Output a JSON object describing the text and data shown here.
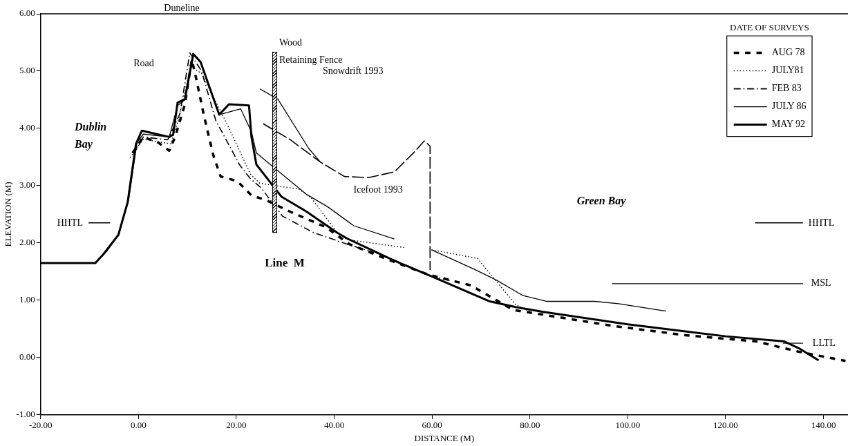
{
  "chart_data": {
    "type": "line",
    "xlabel": "DISTANCE (M)",
    "ylabel": "ELEVATION (M)",
    "legend_title": "DATE OF SURVEYS",
    "legend": "top right",
    "grid": false,
    "xlim": [
      -20,
      145
    ],
    "ylim": [
      -1,
      6
    ],
    "xticks": [
      {
        "value": -20,
        "label": "-20.00"
      },
      {
        "value": 0,
        "label": "0.00"
      },
      {
        "value": 20,
        "label": "20.00"
      },
      {
        "value": 40,
        "label": "40.00"
      },
      {
        "value": 60,
        "label": "60.00"
      },
      {
        "value": 80,
        "label": "80.00"
      },
      {
        "value": 100,
        "label": "100.00"
      },
      {
        "value": 120,
        "label": "120.00"
      },
      {
        "value": 140,
        "label": "140.00"
      }
    ],
    "yticks": [
      {
        "value": -1,
        "label": "-1.00"
      },
      {
        "value": 0,
        "label": "0.00"
      },
      {
        "value": 1,
        "label": "1.00"
      },
      {
        "value": 2,
        "label": "2.00"
      },
      {
        "value": 3,
        "label": "3.00"
      },
      {
        "value": 4,
        "label": "4.00"
      },
      {
        "value": 5,
        "label": "5.00"
      },
      {
        "value": 6,
        "label": "6.00"
      }
    ],
    "series": [
      {
        "name": "AUG 78",
        "color": "#000000",
        "line_style": "dashed",
        "x": [
          -1.2,
          1.0,
          4.1,
          6.3,
          7.5,
          9.5,
          10.9,
          11.7,
          13.4,
          15.3,
          16.8,
          20.2,
          23.1,
          26.0,
          30.9,
          38.2,
          43.1,
          50.4,
          59.1,
          67.9,
          76.6,
          82.5,
          97.1,
          111.7,
          126.3,
          135,
          144.5
        ],
        "values": [
          3.57,
          3.85,
          3.75,
          3.61,
          3.85,
          4.42,
          5.2,
          4.91,
          4.22,
          3.53,
          3.16,
          3.08,
          2.83,
          2.75,
          2.55,
          2.28,
          1.98,
          1.73,
          1.45,
          1.26,
          0.83,
          0.75,
          0.55,
          0.39,
          0.28,
          0.1,
          -0.06
        ]
      },
      {
        "name": "JULY81",
        "color": "#000000",
        "line_style": "dotted",
        "x": [
          -1.7,
          1.0,
          6.6,
          8.0,
          10.7,
          12.9,
          18.2,
          22.9,
          24.8,
          32.8,
          35.3,
          40.6,
          42.6,
          54.3,
          57,
          59.9,
          69.3,
          77.1,
          80
        ],
        "values": [
          3.49,
          3.81,
          3.73,
          4.1,
          5.08,
          4.96,
          4.06,
          3.2,
          3.04,
          2.94,
          2.79,
          2.18,
          2.06,
          1.92,
          null,
          1.88,
          1.73,
          0.92,
          0.8
        ]
      },
      {
        "name": "FEB 83",
        "color": "#000000",
        "line_style": "dashdot",
        "x": [
          -1,
          1,
          6,
          8.5,
          10.5,
          12.9,
          15.8,
          20.7,
          22.9,
          25.1,
          29.4,
          35.8,
          42.6,
          50.4,
          60.1,
          64
        ],
        "values": [
          3.55,
          3.85,
          3.8,
          4.26,
          5.32,
          5.0,
          4.14,
          3.36,
          3.12,
          2.96,
          2.47,
          2.18,
          1.98,
          1.77,
          1.41,
          1.34
        ]
      },
      {
        "name": "JULY 86",
        "color": "#000000",
        "line_style": "solid",
        "x": [
          -20,
          -8.8,
          -6.5,
          -4,
          -2,
          -0.3,
          1,
          6.3,
          8,
          9.5,
          11.3,
          12.7,
          16.5,
          20.9,
          23.1,
          24.1,
          34.3,
          38.7,
          44,
          52.3,
          55,
          59.9,
          68.9,
          73.2,
          78.6,
          83.5,
          93.2,
          98.1,
          107.8
        ],
        "values": [
          1.65,
          1.65,
          1.85,
          2.15,
          2.75,
          3.75,
          3.9,
          3.85,
          4.4,
          4.5,
          5.28,
          5.15,
          4.24,
          4.34,
          3.94,
          3.57,
          2.85,
          2.63,
          2.3,
          2.07,
          null,
          1.88,
          1.53,
          1.35,
          1.08,
          0.98,
          0.98,
          0.94,
          0.81
        ]
      },
      {
        "name": "MAY 92",
        "color": "#000000",
        "line_style": "solid",
        "x": [
          -20,
          -8.8,
          -7.1,
          -4.1,
          -2.2,
          -0.5,
          0.7,
          6.3,
          7.1,
          8,
          9.5,
          11.2,
          12.7,
          16.5,
          18.5,
          22.6,
          23.1,
          24.1,
          29.2,
          34.3,
          40.6,
          42.6,
          52.3,
          60.1,
          71.8,
          77.1,
          82.5,
          100,
          120,
          132,
          135,
          139
        ],
        "values": [
          1.65,
          1.65,
          1.81,
          2.14,
          2.71,
          3.73,
          3.96,
          3.85,
          3.89,
          4.45,
          4.51,
          5.3,
          5.16,
          4.24,
          4.42,
          4.4,
          3.85,
          3.37,
          2.81,
          2.55,
          2.18,
          2.08,
          1.69,
          1.41,
          0.98,
          0.88,
          0.8,
          0.58,
          0.37,
          0.28,
          0.16,
          -0.05
        ]
      },
      {
        "color": "#000000",
        "line_style": "solid",
        "x": [
          24.8,
          28.5,
          34.8,
          37.2
        ],
        "values": [
          4.69,
          4.51,
          3.65,
          3.41
        ]
      },
      {
        "color": "#000000",
        "line_style": "dashed",
        "x": [
          25.5,
          30.9,
          37.2,
          42.1,
          47,
          52.3,
          56.2,
          58.4,
          59.6,
          59.6
        ],
        "values": [
          4.08,
          3.81,
          3.41,
          3.16,
          3.14,
          3.24,
          3.57,
          3.78,
          3.69,
          1.53
        ]
      },
      {
        "color": "#000000",
        "line_style": "solid",
        "x": [
          -10.2,
          -5.8,
          0,
          126,
          135.8
        ],
        "values": [
          2.35,
          2.35,
          null,
          2.35,
          2.35
        ]
      },
      {
        "color": "#000000",
        "line_style": "solid",
        "x": [
          96.8,
          135.8
        ],
        "values": [
          1.29,
          1.29
        ]
      },
      {
        "color": "#000000",
        "line_style": "solid",
        "x": [
          131.7,
          135.8
        ],
        "values": [
          0.25,
          0.25
        ]
      }
    ],
    "annotations": [
      "Road",
      "Duneline",
      "Wood\nRetaining Fence",
      "Snowdrift 1993",
      {
        "text": "Icefoot 1993",
        "x": 47,
        "y": 3.14
      },
      {
        "text": "HHTL",
        "x": -10.2,
        "y": 2.35
      },
      {
        "text": "HHTL",
        "x": 135.8,
        "y": 2.35
      },
      {
        "text": "MSL",
        "x": 135.8,
        "y": 1.29
      },
      {
        "text": "LLTL",
        "x": 135.8,
        "y": 0.25
      },
      "Dublin\nBay",
      "Green Bay",
      "Line  M"
    ]
  }
}
